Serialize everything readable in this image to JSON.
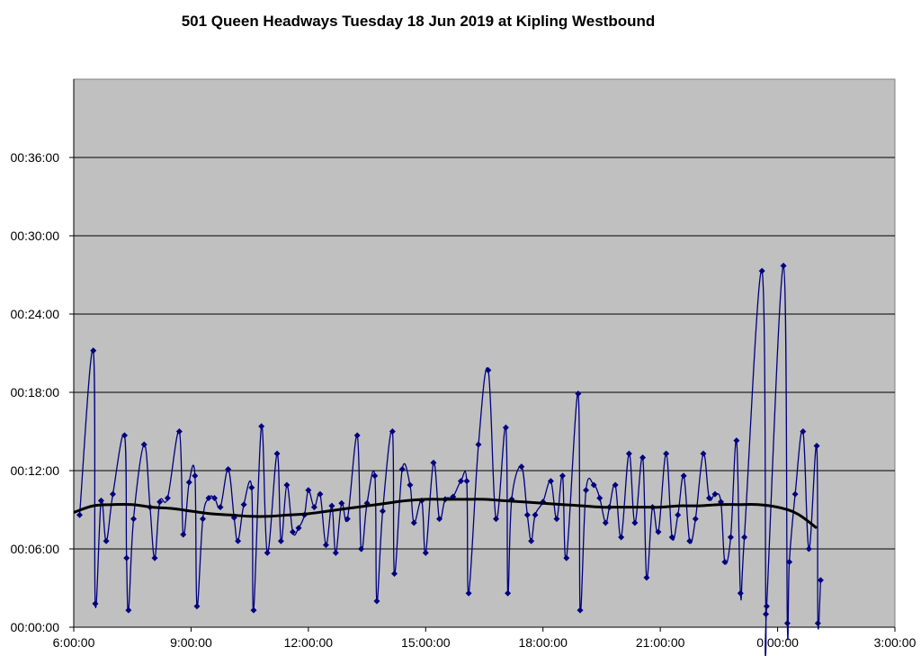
{
  "chart_data": {
    "type": "line",
    "title": "501 Queen Headways Tuesday 18 Jun 2019 at Kipling Westbound",
    "xlabel": "",
    "ylabel": "",
    "x_ticks": [
      "6:00:00",
      "9:00:00",
      "12:00:00",
      "15:00:00",
      "18:00:00",
      "21:00:00",
      "0:00:00",
      "3:00:00"
    ],
    "y_ticks": [
      "00:00:00",
      "00:06:00",
      "00:12:00",
      "00:18:00",
      "00:24:00",
      "00:30:00",
      "00:36:00"
    ],
    "xlim_hours": [
      6,
      27
    ],
    "ylim_minutes": [
      0,
      42
    ],
    "grid": "horizontal",
    "legend": "none",
    "series": [
      {
        "kind": "headway",
        "color": "#000080",
        "marker": "diamond",
        "points": [
          [
            6.15,
            8.6
          ],
          [
            6.5,
            21.2
          ],
          [
            6.55,
            1.8
          ],
          [
            6.7,
            9.7
          ],
          [
            6.83,
            6.6
          ],
          [
            7.0,
            10.2
          ],
          [
            7.3,
            14.7
          ],
          [
            7.35,
            5.3
          ],
          [
            7.4,
            1.3
          ],
          [
            7.53,
            8.3
          ],
          [
            7.8,
            14.0
          ],
          [
            7.95,
            9.2
          ],
          [
            8.07,
            5.3
          ],
          [
            8.2,
            9.6
          ],
          [
            8.4,
            9.9
          ],
          [
            8.7,
            15.0
          ],
          [
            8.8,
            7.1
          ],
          [
            8.95,
            11.1
          ],
          [
            9.1,
            11.6
          ],
          [
            9.15,
            1.6
          ],
          [
            9.3,
            8.3
          ],
          [
            9.45,
            9.9
          ],
          [
            9.6,
            9.9
          ],
          [
            9.75,
            9.2
          ],
          [
            9.95,
            12.1
          ],
          [
            10.1,
            8.4
          ],
          [
            10.2,
            6.6
          ],
          [
            10.35,
            9.4
          ],
          [
            10.55,
            10.7
          ],
          [
            10.6,
            1.3
          ],
          [
            10.8,
            15.4
          ],
          [
            10.95,
            5.7
          ],
          [
            11.2,
            13.3
          ],
          [
            11.3,
            6.6
          ],
          [
            11.45,
            10.9
          ],
          [
            11.6,
            7.3
          ],
          [
            11.75,
            7.6
          ],
          [
            11.9,
            8.6
          ],
          [
            12.0,
            10.5
          ],
          [
            12.15,
            9.2
          ],
          [
            12.3,
            10.2
          ],
          [
            12.45,
            6.3
          ],
          [
            12.6,
            9.3
          ],
          [
            12.7,
            5.7
          ],
          [
            12.85,
            9.5
          ],
          [
            13.0,
            8.3
          ],
          [
            13.25,
            14.7
          ],
          [
            13.35,
            6.0
          ],
          [
            13.5,
            9.5
          ],
          [
            13.7,
            11.6
          ],
          [
            13.75,
            2.0
          ],
          [
            13.9,
            8.9
          ],
          [
            14.15,
            15.0
          ],
          [
            14.2,
            4.1
          ],
          [
            14.4,
            12.1
          ],
          [
            14.6,
            10.9
          ],
          [
            14.7,
            8.0
          ],
          [
            14.9,
            9.7
          ],
          [
            15.0,
            5.7
          ],
          [
            15.2,
            12.6
          ],
          [
            15.35,
            8.3
          ],
          [
            15.5,
            9.8
          ],
          [
            15.7,
            10.0
          ],
          [
            15.9,
            11.2
          ],
          [
            16.05,
            11.2
          ],
          [
            16.1,
            2.6
          ],
          [
            16.35,
            14.0
          ],
          [
            16.6,
            19.7
          ],
          [
            16.8,
            8.3
          ],
          [
            17.05,
            15.3
          ],
          [
            17.1,
            2.6
          ],
          [
            17.2,
            9.8
          ],
          [
            17.45,
            12.3
          ],
          [
            17.6,
            8.6
          ],
          [
            17.7,
            6.6
          ],
          [
            17.8,
            8.6
          ],
          [
            18.0,
            9.6
          ],
          [
            18.2,
            11.2
          ],
          [
            18.35,
            8.3
          ],
          [
            18.5,
            11.6
          ],
          [
            18.6,
            5.3
          ],
          [
            18.9,
            17.9
          ],
          [
            18.95,
            1.3
          ],
          [
            19.1,
            10.5
          ],
          [
            19.3,
            10.9
          ],
          [
            19.45,
            9.9
          ],
          [
            19.6,
            8.0
          ],
          [
            19.7,
            9.2
          ],
          [
            19.85,
            10.9
          ],
          [
            20.0,
            6.9
          ],
          [
            20.2,
            13.3
          ],
          [
            20.35,
            8.0
          ],
          [
            20.55,
            13.0
          ],
          [
            20.65,
            3.8
          ],
          [
            20.8,
            9.2
          ],
          [
            20.95,
            7.3
          ],
          [
            21.15,
            13.3
          ],
          [
            21.3,
            6.9
          ],
          [
            21.45,
            8.6
          ],
          [
            21.6,
            11.6
          ],
          [
            21.75,
            6.6
          ],
          [
            21.9,
            8.3
          ],
          [
            22.1,
            13.3
          ],
          [
            22.25,
            9.9
          ],
          [
            22.4,
            10.2
          ],
          [
            22.55,
            9.6
          ],
          [
            22.65,
            5.0
          ],
          [
            22.8,
            6.9
          ],
          [
            22.95,
            14.3
          ],
          [
            23.05,
            2.6
          ],
          [
            23.15,
            6.9
          ],
          [
            23.6,
            27.3
          ],
          [
            23.7,
            1.0
          ],
          [
            23.72,
            1.6
          ],
          [
            24.15,
            27.7
          ],
          [
            24.25,
            0.3
          ],
          [
            24.3,
            5.0
          ],
          [
            24.45,
            10.2
          ],
          [
            24.65,
            15.0
          ],
          [
            24.8,
            6.0
          ],
          [
            25.0,
            13.9
          ],
          [
            25.03,
            0.3
          ],
          [
            25.1,
            3.6
          ]
        ]
      },
      {
        "kind": "trend",
        "color": "#000000",
        "points": [
          [
            6.0,
            8.8
          ],
          [
            6.5,
            9.3
          ],
          [
            7.0,
            9.4
          ],
          [
            7.5,
            9.4
          ],
          [
            8.0,
            9.2
          ],
          [
            8.5,
            9.1
          ],
          [
            9.0,
            8.9
          ],
          [
            9.5,
            8.7
          ],
          [
            10.0,
            8.6
          ],
          [
            10.5,
            8.5
          ],
          [
            11.0,
            8.5
          ],
          [
            11.5,
            8.6
          ],
          [
            12.0,
            8.7
          ],
          [
            12.5,
            8.9
          ],
          [
            13.0,
            9.1
          ],
          [
            13.5,
            9.3
          ],
          [
            14.0,
            9.5
          ],
          [
            14.5,
            9.7
          ],
          [
            15.0,
            9.8
          ],
          [
            15.5,
            9.8
          ],
          [
            16.0,
            9.8
          ],
          [
            16.5,
            9.8
          ],
          [
            17.0,
            9.7
          ],
          [
            17.5,
            9.6
          ],
          [
            18.0,
            9.5
          ],
          [
            18.5,
            9.4
          ],
          [
            19.0,
            9.3
          ],
          [
            19.5,
            9.2
          ],
          [
            20.0,
            9.2
          ],
          [
            20.5,
            9.2
          ],
          [
            21.0,
            9.2
          ],
          [
            21.5,
            9.3
          ],
          [
            22.0,
            9.3
          ],
          [
            22.5,
            9.4
          ],
          [
            23.0,
            9.4
          ],
          [
            23.5,
            9.4
          ],
          [
            24.0,
            9.2
          ],
          [
            24.5,
            8.7
          ],
          [
            25.0,
            7.6
          ]
        ]
      }
    ]
  }
}
